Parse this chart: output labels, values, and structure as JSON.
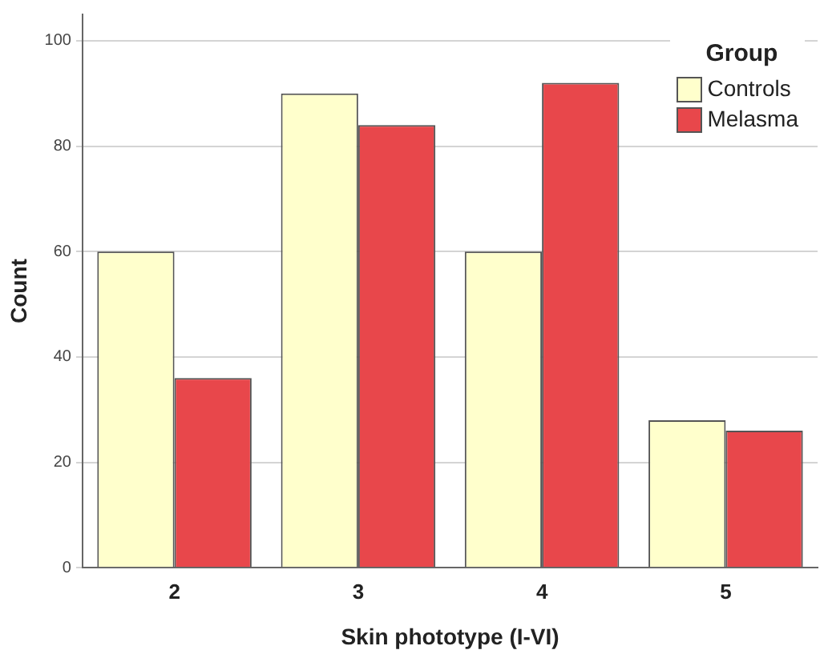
{
  "chart_data": {
    "type": "bar",
    "xlabel": "Skin phototype (I-VI)",
    "ylabel": "Count",
    "legend_title": "Group",
    "categories": [
      "2",
      "3",
      "4",
      "5"
    ],
    "series": [
      {
        "name": "Controls",
        "color": "#ffffcc",
        "values": [
          60,
          90,
          60,
          28
        ]
      },
      {
        "name": "Melasma",
        "color": "#e8474b",
        "values": [
          36,
          84,
          92,
          26
        ]
      }
    ],
    "ylim": [
      0,
      105
    ],
    "yticks": [
      0,
      20,
      40,
      60,
      80,
      100
    ],
    "grid": "y",
    "legend": "top right"
  }
}
